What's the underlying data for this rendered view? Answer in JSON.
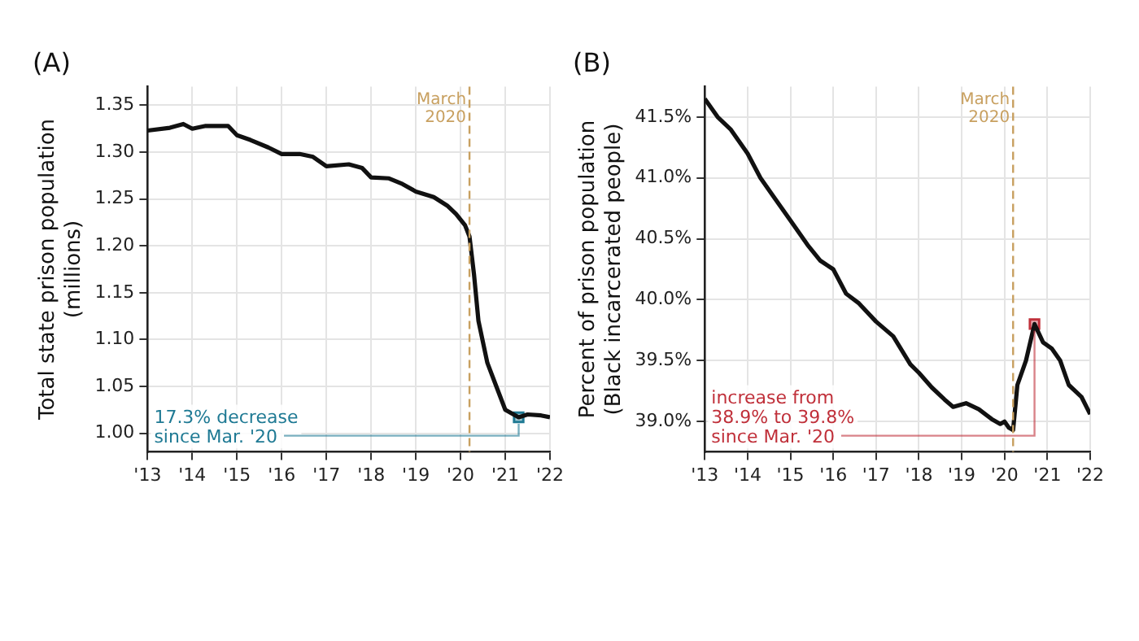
{
  "chart_data": [
    {
      "type": "line",
      "title": "(A)",
      "ylabel": "Total state prison population\n(millions)",
      "grid": true,
      "legend": false,
      "marker": "none",
      "line_style": "solid",
      "xlim": [
        2013,
        2022
      ],
      "xticks": [
        {
          "value": 2013,
          "label": "'13"
        },
        {
          "value": 2014,
          "label": "'14"
        },
        {
          "value": 2015,
          "label": "'15"
        },
        {
          "value": 2016,
          "label": "'16"
        },
        {
          "value": 2017,
          "label": "'17"
        },
        {
          "value": 2018,
          "label": "'18"
        },
        {
          "value": 2019,
          "label": "'19"
        },
        {
          "value": 2020,
          "label": "'20"
        },
        {
          "value": 2021,
          "label": "'21"
        },
        {
          "value": 2022,
          "label": "'22"
        }
      ],
      "ylim": [
        0.98,
        1.37
      ],
      "yticks": [
        {
          "value": 1.0,
          "label": "1.00"
        },
        {
          "value": 1.05,
          "label": "1.05"
        },
        {
          "value": 1.1,
          "label": "1.10"
        },
        {
          "value": 1.15,
          "label": "1.15"
        },
        {
          "value": 1.2,
          "label": "1.20"
        },
        {
          "value": 1.25,
          "label": "1.25"
        },
        {
          "value": 1.3,
          "label": "1.30"
        },
        {
          "value": 1.35,
          "label": "1.35"
        }
      ],
      "ref_lines": [
        {
          "axis": "x",
          "value": 2020.2,
          "label": "March 2020",
          "color": "#c8a060",
          "line_style": "dashed"
        }
      ],
      "series": [
        {
          "color": "#111111",
          "x": [
            2013,
            2013.5,
            2013.8,
            2014,
            2014.3,
            2014.8,
            2015,
            2015.3,
            2015.7,
            2016,
            2016.4,
            2016.7,
            2017,
            2017.5,
            2017.8,
            2018,
            2018.4,
            2018.7,
            2019,
            2019.4,
            2019.7,
            2019.9,
            2020.1,
            2020.2,
            2020.3,
            2020.4,
            2020.6,
            2020.8,
            2021,
            2021.3,
            2021.5,
            2021.8,
            2022
          ],
          "values": [
            1.323,
            1.326,
            1.33,
            1.325,
            1.328,
            1.328,
            1.318,
            1.313,
            1.305,
            1.298,
            1.298,
            1.295,
            1.285,
            1.287,
            1.283,
            1.273,
            1.272,
            1.266,
            1.258,
            1.252,
            1.243,
            1.234,
            1.222,
            1.21,
            1.17,
            1.12,
            1.075,
            1.05,
            1.025,
            1.017,
            1.02,
            1.019,
            1.017
          ]
        },
        {
          "type": "scatter",
          "color": "#1f7a94",
          "marker": "square",
          "x": [
            2021.3
          ],
          "values": [
            1.017
          ]
        }
      ],
      "annotations": [
        {
          "text": "17.3% decrease\nsince Mar. '20",
          "x": 2021.3,
          "y": 1.017
        }
      ]
    },
    {
      "type": "line",
      "title": "(B)",
      "ylabel": "Percent of prison population\n(Black incarcerated people)",
      "grid": true,
      "legend": false,
      "marker": "none",
      "line_style": "solid",
      "xlim": [
        2013,
        2022
      ],
      "xticks": [
        {
          "value": 2013,
          "label": "'13"
        },
        {
          "value": 2014,
          "label": "'14"
        },
        {
          "value": 2015,
          "label": "'15"
        },
        {
          "value": 2016,
          "label": "'16"
        },
        {
          "value": 2017,
          "label": "'17"
        },
        {
          "value": 2018,
          "label": "'18"
        },
        {
          "value": 2019,
          "label": "'19"
        },
        {
          "value": 2020,
          "label": "'20"
        },
        {
          "value": 2021,
          "label": "'21"
        },
        {
          "value": 2022,
          "label": "'22"
        }
      ],
      "ylim": [
        38.75,
        41.75
      ],
      "yticks": [
        {
          "value": 39.0,
          "label": "39.0%"
        },
        {
          "value": 39.5,
          "label": "39.5%"
        },
        {
          "value": 40.0,
          "label": "40.0%"
        },
        {
          "value": 40.5,
          "label": "40.5%"
        },
        {
          "value": 41.0,
          "label": "41.0%"
        },
        {
          "value": 41.5,
          "label": "41.5%"
        }
      ],
      "ref_lines": [
        {
          "axis": "x",
          "value": 2020.2,
          "label": "March 2020",
          "color": "#c8a060",
          "line_style": "dashed"
        }
      ],
      "series": [
        {
          "color": "#111111",
          "x": [
            2013,
            2013.3,
            2013.6,
            2014,
            2014.3,
            2014.6,
            2015,
            2015.4,
            2015.7,
            2016,
            2016.3,
            2016.6,
            2017,
            2017.4,
            2017.8,
            2018,
            2018.3,
            2018.6,
            2018.8,
            2019.1,
            2019.4,
            2019.7,
            2019.9,
            2020,
            2020.1,
            2020.2,
            2020.3,
            2020.5,
            2020.7,
            2020.9,
            2021.1,
            2021.3,
            2021.5,
            2021.8,
            2022
          ],
          "values": [
            41.65,
            41.5,
            41.4,
            41.2,
            41.0,
            40.85,
            40.65,
            40.45,
            40.32,
            40.25,
            40.05,
            39.97,
            39.82,
            39.7,
            39.47,
            39.4,
            39.28,
            39.18,
            39.12,
            39.15,
            39.1,
            39.02,
            38.98,
            39.0,
            38.95,
            38.93,
            39.3,
            39.5,
            39.8,
            39.65,
            39.6,
            39.5,
            39.3,
            39.2,
            39.06
          ]
        },
        {
          "type": "scatter",
          "color": "#c0303a",
          "marker": "square",
          "x": [
            2020.7
          ],
          "values": [
            39.8
          ]
        }
      ],
      "annotations": [
        {
          "text": "increase from\n38.9% to 39.8%\nsince Mar. '20",
          "x": 2020.7,
          "y": 39.8
        }
      ]
    }
  ]
}
